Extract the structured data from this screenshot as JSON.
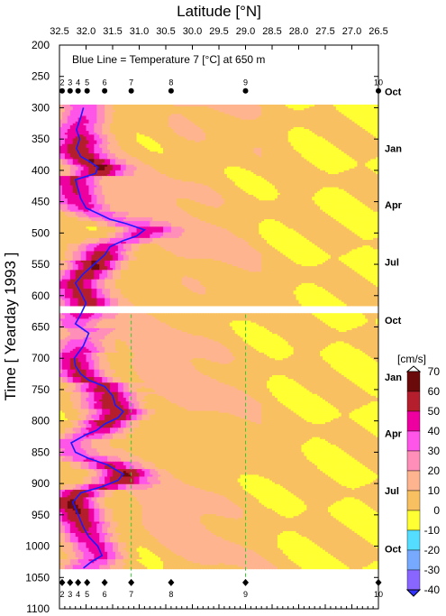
{
  "chart_data": {
    "type": "heatmap",
    "title": "",
    "xlabel": "Latitude [°N]",
    "ylabel": "Time [ Yearday 1993 ]",
    "annotation": "Blue Line = Temperature 7 [°C] at 650 m",
    "xlim": [
      32.5,
      26.5
    ],
    "ylim": [
      1100,
      200
    ],
    "x_tick_labels": [
      "32.5",
      "32.0",
      "31.5",
      "31.0",
      "30.5",
      "30.0",
      "29.5",
      "29.0",
      "28.5",
      "28.0",
      "27.5",
      "27.0",
      "26.5"
    ],
    "x_ticks": [
      32.5,
      32.0,
      31.5,
      31.0,
      30.5,
      30.0,
      29.5,
      29.0,
      28.5,
      28.0,
      27.5,
      27.0,
      26.5
    ],
    "y_ticks": [
      200,
      250,
      300,
      350,
      400,
      450,
      500,
      550,
      600,
      650,
      700,
      750,
      800,
      850,
      900,
      950,
      1000,
      1050,
      1100
    ],
    "y_tick_labels": [
      "200",
      "250",
      "300",
      "350",
      "400",
      "450",
      "500",
      "550",
      "600",
      "650",
      "700",
      "750",
      "800",
      "850",
      "900",
      "950",
      "1000",
      "1050",
      "1100"
    ],
    "month_labels": [
      {
        "label": "Oct",
        "day": 274
      },
      {
        "label": "Jan",
        "day": 365
      },
      {
        "label": "Apr",
        "day": 455
      },
      {
        "label": "Jul",
        "day": 546
      },
      {
        "label": "Oct",
        "day": 639
      },
      {
        "label": "Jan",
        "day": 730
      },
      {
        "label": "Apr",
        "day": 820
      },
      {
        "label": "Jul",
        "day": 911
      },
      {
        "label": "Oct",
        "day": 1004
      }
    ],
    "stations": {
      "labels": [
        "2",
        "3",
        "4",
        "5",
        "6",
        "7",
        "8",
        "9",
        "10"
      ],
      "lat": [
        32.45,
        32.3,
        32.15,
        31.98,
        31.65,
        31.15,
        30.4,
        29.0,
        26.5
      ],
      "top_day": 273,
      "bottom_day": 1058,
      "dashed_station_lat": [
        31.15,
        29.0
      ],
      "dashed_range": [
        630,
        1050
      ]
    },
    "data_gap": [
      615,
      628
    ],
    "data_range_days": [
      295,
      1035
    ],
    "colorbar": {
      "title": "[cm/s]",
      "levels": [
        70,
        60,
        50,
        40,
        30,
        20,
        10,
        0,
        -10,
        -20,
        -30,
        -40
      ],
      "colors": [
        "#6b0a0a",
        "#b41e2d",
        "#ee00a0",
        "#ff55e8",
        "#ff8fb8",
        "#ffb490",
        "#f8c060",
        "#ffff33",
        "#55ddff",
        "#77aaff",
        "#8866ff",
        "#3333ff"
      ]
    },
    "series": [
      {
        "name": "Blue Line = Temperature 7 [°C] at 650 m",
        "color": "#1a1aff",
        "points": [
          [
            32.05,
            300
          ],
          [
            32.1,
            315
          ],
          [
            32.18,
            335
          ],
          [
            32.12,
            350
          ],
          [
            32.18,
            365
          ],
          [
            32.1,
            378
          ],
          [
            31.95,
            385
          ],
          [
            31.78,
            395
          ],
          [
            31.82,
            405
          ],
          [
            32.2,
            415
          ],
          [
            32.15,
            430
          ],
          [
            32.1,
            445
          ],
          [
            32.0,
            460
          ],
          [
            31.75,
            470
          ],
          [
            31.55,
            478
          ],
          [
            31.25,
            485
          ],
          [
            30.9,
            495
          ],
          [
            31.05,
            505
          ],
          [
            31.3,
            512
          ],
          [
            31.55,
            522
          ],
          [
            31.65,
            535
          ],
          [
            31.85,
            550
          ],
          [
            32.05,
            565
          ],
          [
            32.2,
            580
          ],
          [
            32.1,
            595
          ],
          [
            32.0,
            612
          ],
          [
            32.1,
            630
          ],
          [
            32.2,
            645
          ],
          [
            31.95,
            660
          ],
          [
            32.05,
            680
          ],
          [
            32.22,
            700
          ],
          [
            32.2,
            712
          ],
          [
            32.1,
            725
          ],
          [
            31.95,
            735
          ],
          [
            31.65,
            745
          ],
          [
            31.5,
            760
          ],
          [
            31.45,
            775
          ],
          [
            31.3,
            785
          ],
          [
            31.4,
            795
          ],
          [
            31.65,
            805
          ],
          [
            31.8,
            815
          ],
          [
            32.0,
            822
          ],
          [
            32.28,
            835
          ],
          [
            32.2,
            850
          ],
          [
            31.95,
            860
          ],
          [
            31.6,
            870
          ],
          [
            31.3,
            885
          ],
          [
            31.4,
            895
          ],
          [
            31.7,
            905
          ],
          [
            32.1,
            915
          ],
          [
            32.25,
            930
          ],
          [
            32.15,
            950
          ],
          [
            32.05,
            970
          ],
          [
            31.95,
            985
          ],
          [
            31.78,
            1000
          ],
          [
            31.7,
            1015
          ],
          [
            31.9,
            1025
          ],
          [
            32.05,
            1035
          ]
        ]
      }
    ]
  }
}
